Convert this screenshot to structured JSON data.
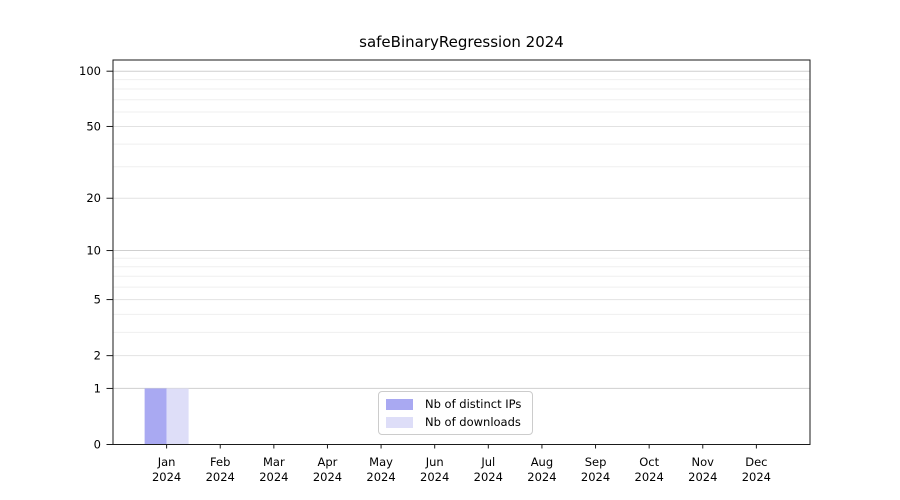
{
  "chart_data": {
    "type": "bar",
    "title": "safeBinaryRegression 2024",
    "categories": [
      "Jan",
      "Feb",
      "Mar",
      "Apr",
      "May",
      "Jun",
      "Jul",
      "Aug",
      "Sep",
      "Oct",
      "Nov",
      "Dec"
    ],
    "category_year": "2024",
    "series": [
      {
        "name": "Nb of distinct IPs",
        "color": "#a9a9f2",
        "values": [
          1,
          0,
          0,
          0,
          0,
          0,
          0,
          0,
          0,
          0,
          0,
          0
        ]
      },
      {
        "name": "Nb of downloads",
        "color": "#dedef8",
        "values": [
          1,
          0,
          0,
          0,
          0,
          0,
          0,
          0,
          0,
          0,
          0,
          0
        ]
      }
    ],
    "xlabel": "",
    "ylabel": "",
    "scale": "log1p",
    "ylim": [
      0,
      115
    ],
    "y_ticks": [
      0,
      1,
      2,
      5,
      10,
      20,
      50,
      100
    ],
    "y_minor_gridlines": [
      3,
      4,
      6,
      7,
      8,
      9,
      30,
      40,
      60,
      70,
      80,
      90
    ],
    "grid": true,
    "legend_position": "inside-bottom-center",
    "colors": {
      "axis": "#1a1a1a",
      "text": "#000000",
      "grid_major": "#cfcfcf",
      "grid_mid": "#e2e2e2",
      "grid_minor": "#efefef",
      "background": "#ffffff",
      "legend_border": "#cccccc"
    }
  }
}
